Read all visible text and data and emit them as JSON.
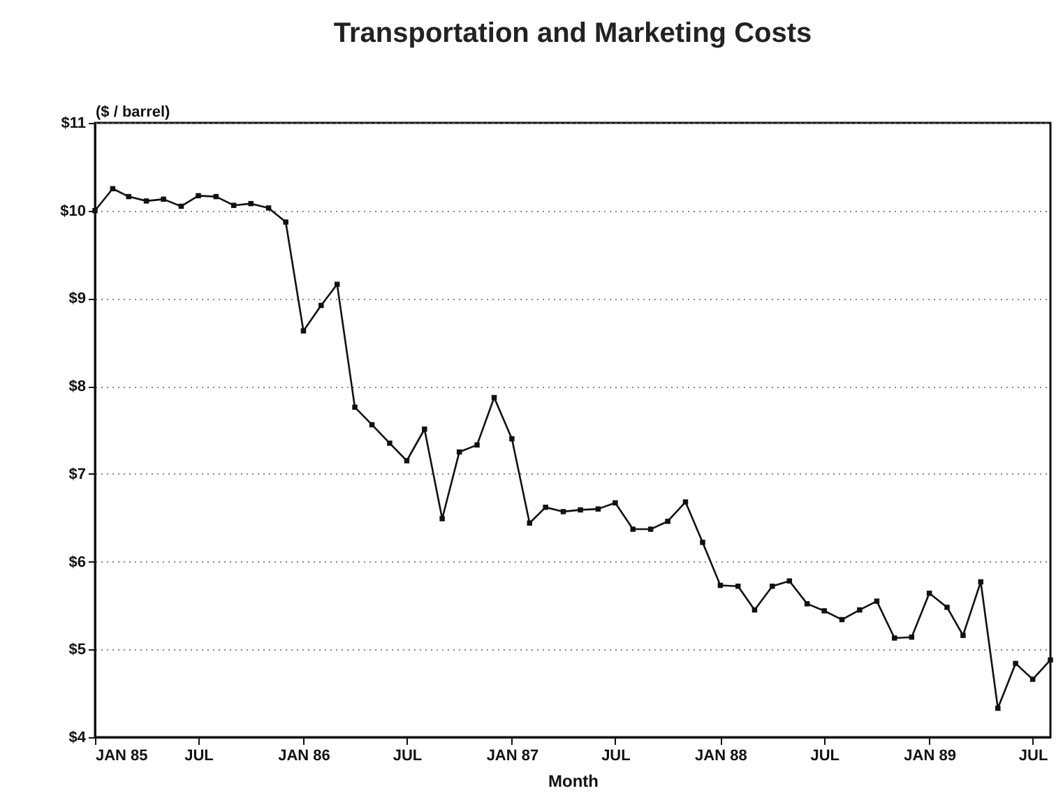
{
  "chart_data": {
    "type": "line",
    "title": "Transportation and Marketing Costs",
    "xlabel": "Month",
    "ylabel": "($ / barrel)",
    "x": [
      "1985-01",
      "1985-02",
      "1985-03",
      "1985-04",
      "1985-05",
      "1985-06",
      "1985-07",
      "1985-08",
      "1985-09",
      "1985-10",
      "1985-11",
      "1985-12",
      "1986-01",
      "1986-02",
      "1986-03",
      "1986-04",
      "1986-05",
      "1986-06",
      "1986-07",
      "1986-08",
      "1986-09",
      "1986-10",
      "1986-11",
      "1986-12",
      "1987-01",
      "1987-02",
      "1987-03",
      "1987-04",
      "1987-05",
      "1987-06",
      "1987-07",
      "1987-08",
      "1987-09",
      "1987-10",
      "1987-11",
      "1987-12",
      "1988-01",
      "1988-02",
      "1988-03",
      "1988-04",
      "1988-05",
      "1988-06",
      "1988-07",
      "1988-08",
      "1988-09",
      "1988-10",
      "1988-11",
      "1988-12",
      "1989-01",
      "1989-02",
      "1989-03",
      "1989-04",
      "1989-05",
      "1989-06",
      "1989-07",
      "1989-08"
    ],
    "series": [
      {
        "color": "#111111",
        "values": [
          10.0,
          10.25,
          10.16,
          10.11,
          10.13,
          10.05,
          10.17,
          10.16,
          10.06,
          10.08,
          10.03,
          9.87,
          8.63,
          8.92,
          9.16,
          7.76,
          7.56,
          7.35,
          7.15,
          7.51,
          6.49,
          7.25,
          7.33,
          7.87,
          7.4,
          6.44,
          6.62,
          6.57,
          6.59,
          6.6,
          6.67,
          6.37,
          6.37,
          6.46,
          6.68,
          6.22,
          5.73,
          5.72,
          5.45,
          5.72,
          5.78,
          5.52,
          5.44,
          5.34,
          5.45,
          5.55,
          5.13,
          5.14,
          5.64,
          5.48,
          5.16,
          5.77,
          4.33,
          4.84,
          4.66,
          4.88
        ]
      }
    ],
    "xlim": [
      "1985-01",
      "1989-08"
    ],
    "xticks": [
      {
        "value": "1985-01",
        "label": "JAN 85"
      },
      {
        "value": "1985-07",
        "label": "JUL"
      },
      {
        "value": "1986-01",
        "label": "JAN 86"
      },
      {
        "value": "1986-07",
        "label": "JUL"
      },
      {
        "value": "1987-01",
        "label": "JAN 87"
      },
      {
        "value": "1987-07",
        "label": "JUL"
      },
      {
        "value": "1988-01",
        "label": "JAN 88"
      },
      {
        "value": "1988-07",
        "label": "JUL"
      },
      {
        "value": "1989-01",
        "label": "JAN 89"
      },
      {
        "value": "1989-07",
        "label": "JUL"
      }
    ],
    "ylim": [
      4,
      11
    ],
    "yticks": [
      {
        "value": 4,
        "label": "$4"
      },
      {
        "value": 5,
        "label": "$5"
      },
      {
        "value": 6,
        "label": "$6"
      },
      {
        "value": 7,
        "label": "$7"
      },
      {
        "value": 8,
        "label": "$8"
      },
      {
        "value": 9,
        "label": "$9"
      },
      {
        "value": 10,
        "label": "$10"
      },
      {
        "value": 11,
        "label": "$11"
      }
    ],
    "grid": "y",
    "marker": "square",
    "line_style": "solid"
  }
}
